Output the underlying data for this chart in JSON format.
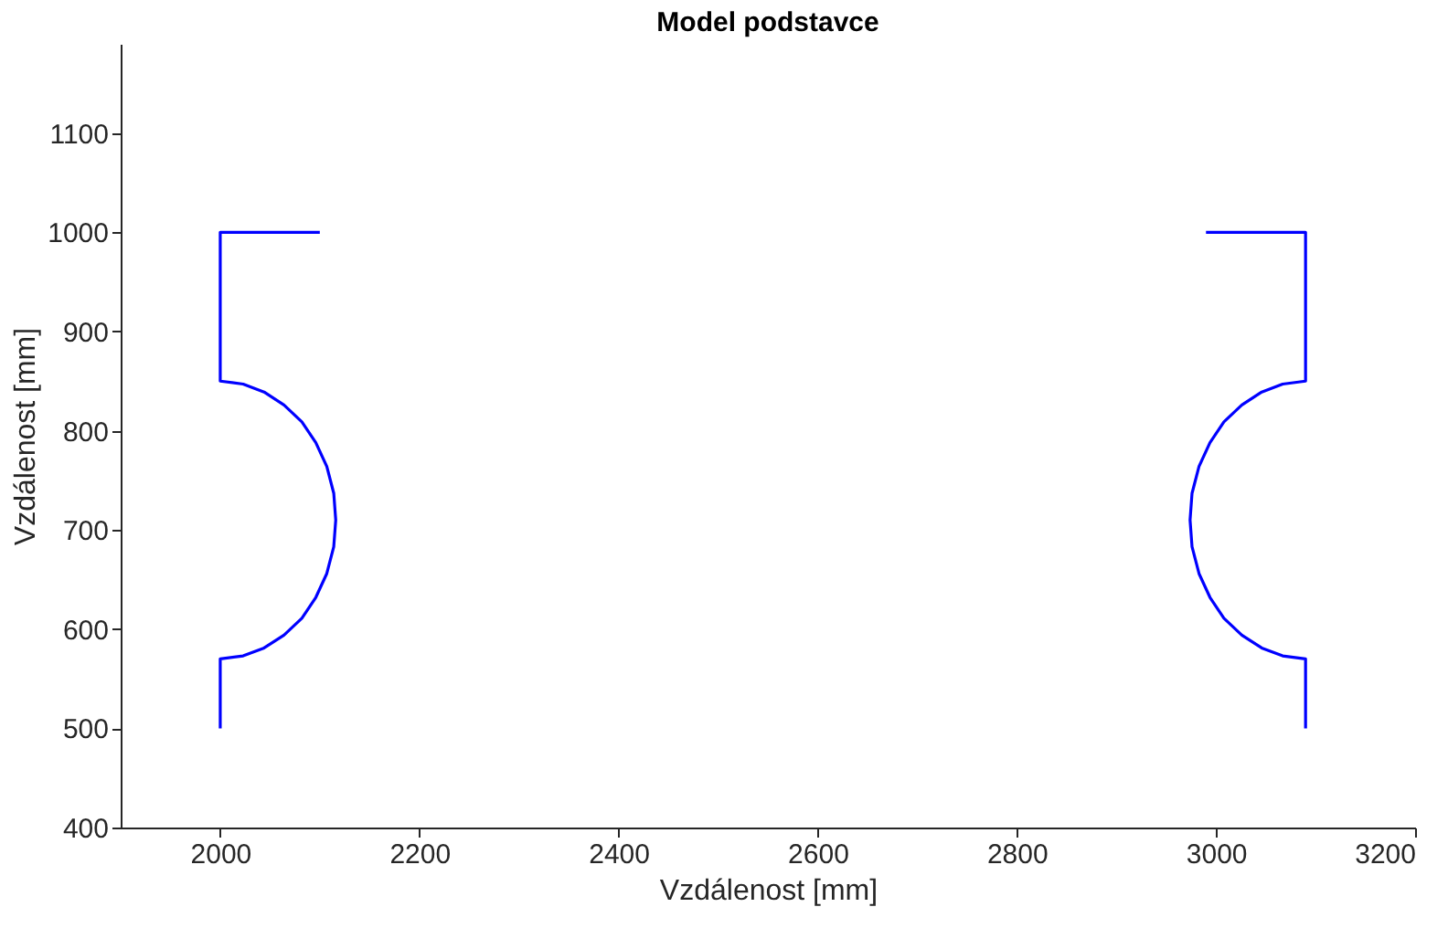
{
  "chart_data": {
    "type": "line",
    "title": "Model podstavce",
    "xlabel": "Vzdálenost [mm]",
    "ylabel": "Vzdálenost [mm]",
    "xlim": [
      1900,
      3200
    ],
    "xticks": [
      2000,
      2200,
      2400,
      2600,
      2800,
      3000,
      3200
    ],
    "ylim": [
      400,
      1190
    ],
    "yticks": [
      400,
      500,
      600,
      700,
      800,
      900,
      1000,
      1100
    ],
    "grid": false,
    "legend": false,
    "marker": "none",
    "line_style": "solid",
    "series": [
      {
        "color": "#0000ff",
        "x": [
          2100,
          2000,
          2000,
          2023,
          2044,
          2064,
          2082,
          2096,
          2107,
          2114,
          2116,
          2114,
          2107,
          2096,
          2082,
          2064,
          2044,
          2023,
          2000,
          2000
        ],
        "values": [
          1000,
          1000,
          850,
          847,
          839,
          826,
          809,
          788,
          764,
          737,
          710,
          683,
          656,
          632,
          611,
          594,
          581,
          573,
          570,
          500
        ]
      },
      {
        "color": "#0000ff",
        "x": [
          2990,
          3090,
          3090,
          3067,
          3046,
          3026,
          3008,
          2994,
          2983,
          2976,
          2974,
          2976,
          2983,
          2994,
          3008,
          3026,
          3046,
          3067,
          3090,
          3090
        ],
        "values": [
          1000,
          1000,
          850,
          847,
          839,
          826,
          809,
          788,
          764,
          737,
          710,
          683,
          656,
          632,
          611,
          594,
          581,
          573,
          570,
          500
        ]
      }
    ]
  }
}
